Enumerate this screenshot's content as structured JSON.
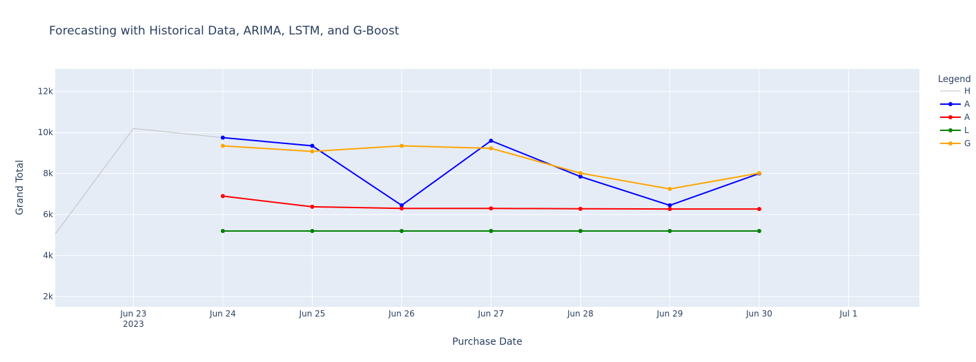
{
  "chart_data": {
    "type": "line",
    "title": "Forecasting with Historical Data, ARIMA, LSTM, and G-Boost",
    "xlabel": "Purchase Date",
    "ylabel": "Grand Total",
    "x_ticks": [
      {
        "date": "2023-06-23",
        "label": "Jun 23",
        "sublabel": "2023"
      },
      {
        "date": "2023-06-24",
        "label": "Jun 24"
      },
      {
        "date": "2023-06-25",
        "label": "Jun 25"
      },
      {
        "date": "2023-06-26",
        "label": "Jun 26"
      },
      {
        "date": "2023-06-27",
        "label": "Jun 27"
      },
      {
        "date": "2023-06-28",
        "label": "Jun 28"
      },
      {
        "date": "2023-06-29",
        "label": "Jun 29"
      },
      {
        "date": "2023-06-30",
        "label": "Jun 30"
      },
      {
        "date": "2023-07-01",
        "label": "Jul 1"
      }
    ],
    "xlim": [
      "2023-06-22 03:00",
      "2023-07-01 19:00"
    ],
    "y_ticks": [
      {
        "value": 2000,
        "label": "2k"
      },
      {
        "value": 4000,
        "label": "4k"
      },
      {
        "value": 6000,
        "label": "6k"
      },
      {
        "value": 8000,
        "label": "8k"
      },
      {
        "value": 10000,
        "label": "10k"
      },
      {
        "value": 12000,
        "label": "12k"
      }
    ],
    "ylim": [
      1500,
      13100
    ],
    "grid": true,
    "legend": {
      "title": "Legend",
      "placement": "right"
    },
    "series": [
      {
        "name": "H",
        "color": "#c0c0c0",
        "markers": false,
        "x": [
          "2023-06-22 03:00",
          "2023-06-23",
          "2023-06-24"
        ],
        "y": [
          5050,
          10200,
          9750
        ]
      },
      {
        "name": "A",
        "color": "#0000ff",
        "markers": true,
        "x": [
          "2023-06-24",
          "2023-06-25",
          "2023-06-26",
          "2023-06-27",
          "2023-06-28",
          "2023-06-29",
          "2023-06-30"
        ],
        "y": [
          9750,
          9350,
          6450,
          9600,
          7850,
          6450,
          8000
        ]
      },
      {
        "name": "A",
        "color": "#ff0000",
        "markers": true,
        "x": [
          "2023-06-24",
          "2023-06-25",
          "2023-06-26",
          "2023-06-27",
          "2023-06-28",
          "2023-06-29",
          "2023-06-30"
        ],
        "y": [
          6900,
          6380,
          6300,
          6300,
          6280,
          6270,
          6270
        ]
      },
      {
        "name": "L",
        "color": "#008000",
        "markers": true,
        "x": [
          "2023-06-24",
          "2023-06-25",
          "2023-06-26",
          "2023-06-27",
          "2023-06-28",
          "2023-06-29",
          "2023-06-30"
        ],
        "y": [
          5200,
          5200,
          5200,
          5200,
          5200,
          5200,
          5200
        ]
      },
      {
        "name": "G",
        "color": "#ffa500",
        "markers": true,
        "x": [
          "2023-06-24",
          "2023-06-25",
          "2023-06-26",
          "2023-06-27",
          "2023-06-28",
          "2023-06-29",
          "2023-06-30"
        ],
        "y": [
          9350,
          9080,
          9350,
          9230,
          8020,
          7250,
          8020
        ]
      }
    ]
  }
}
